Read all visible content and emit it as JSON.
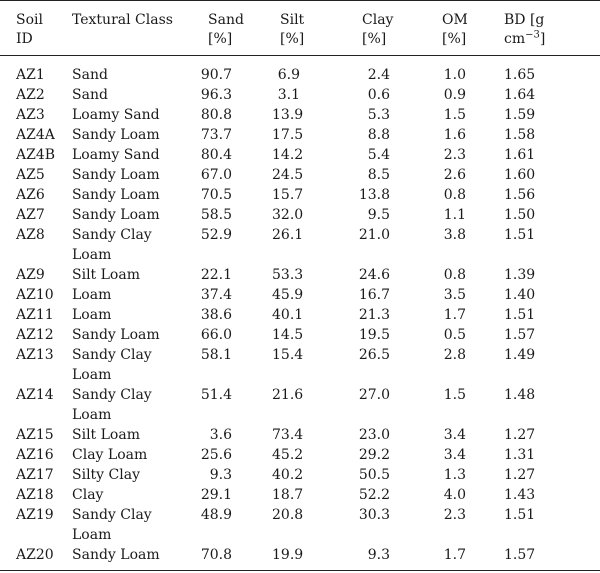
{
  "headers": {
    "soil_id_1": "Soil",
    "soil_id_2": "ID",
    "textural_class": "Textural Class",
    "sand_1": "Sand",
    "sand_2": "[%]",
    "silt_1": "Silt",
    "silt_2": "[%]",
    "clay_1": "Clay",
    "clay_2": "[%]",
    "om_1": "OM",
    "om_2": "[%]",
    "bd_1": "BD [g",
    "bd_2": "cm",
    "bd_sup": "−3",
    "bd_3": "]"
  },
  "rows": [
    {
      "id": "AZ1",
      "cls": "Sand",
      "cls2": "",
      "sand": "90.7",
      "silt": "6.9",
      "clay": "2.4",
      "om": "1.0",
      "bd": "1.65"
    },
    {
      "id": "AZ2",
      "cls": "Sand",
      "cls2": "",
      "sand": "96.3",
      "silt": "3.1",
      "clay": "0.6",
      "om": "0.9",
      "bd": "1.64"
    },
    {
      "id": "AZ3",
      "cls": "Loamy Sand",
      "cls2": "",
      "sand": "80.8",
      "silt": "13.9",
      "clay": "5.3",
      "om": "1.5",
      "bd": "1.59"
    },
    {
      "id": "AZ4A",
      "cls": "Sandy Loam",
      "cls2": "",
      "sand": "73.7",
      "silt": "17.5",
      "clay": "8.8",
      "om": "1.6",
      "bd": "1.58"
    },
    {
      "id": "AZ4B",
      "cls": "Loamy Sand",
      "cls2": "",
      "sand": "80.4",
      "silt": "14.2",
      "clay": "5.4",
      "om": "2.3",
      "bd": "1.61"
    },
    {
      "id": "AZ5",
      "cls": "Sandy Loam",
      "cls2": "",
      "sand": "67.0",
      "silt": "24.5",
      "clay": "8.5",
      "om": "2.6",
      "bd": "1.60"
    },
    {
      "id": "AZ6",
      "cls": "Sandy Loam",
      "cls2": "",
      "sand": "70.5",
      "silt": "15.7",
      "clay": "13.8",
      "om": "0.8",
      "bd": "1.56"
    },
    {
      "id": "AZ7",
      "cls": "Sandy Loam",
      "cls2": "",
      "sand": "58.5",
      "silt": "32.0",
      "clay": "9.5",
      "om": "1.1",
      "bd": "1.50"
    },
    {
      "id": "AZ8",
      "cls": "Sandy Clay",
      "cls2": "Loam",
      "sand": "52.9",
      "silt": "26.1",
      "clay": "21.0",
      "om": "3.8",
      "bd": "1.51"
    },
    {
      "id": "AZ9",
      "cls": "Silt Loam",
      "cls2": "",
      "sand": "22.1",
      "silt": "53.3",
      "clay": "24.6",
      "om": "0.8",
      "bd": "1.39"
    },
    {
      "id": "AZ10",
      "cls": "Loam",
      "cls2": "",
      "sand": "37.4",
      "silt": "45.9",
      "clay": "16.7",
      "om": "3.5",
      "bd": "1.40"
    },
    {
      "id": "AZ11",
      "cls": "Loam",
      "cls2": "",
      "sand": "38.6",
      "silt": "40.1",
      "clay": "21.3",
      "om": "1.7",
      "bd": "1.51"
    },
    {
      "id": "AZ12",
      "cls": "Sandy Loam",
      "cls2": "",
      "sand": "66.0",
      "silt": "14.5",
      "clay": "19.5",
      "om": "0.5",
      "bd": "1.57"
    },
    {
      "id": "AZ13",
      "cls": "Sandy Clay",
      "cls2": "Loam",
      "sand": "58.1",
      "silt": "15.4",
      "clay": "26.5",
      "om": "2.8",
      "bd": "1.49"
    },
    {
      "id": "AZ14",
      "cls": "Sandy Clay",
      "cls2": "Loam",
      "sand": "51.4",
      "silt": "21.6",
      "clay": "27.0",
      "om": "1.5",
      "bd": "1.48"
    },
    {
      "id": "AZ15",
      "cls": "Silt Loam",
      "cls2": "",
      "sand": "3.6",
      "silt": "73.4",
      "clay": "23.0",
      "om": "3.4",
      "bd": "1.27"
    },
    {
      "id": "AZ16",
      "cls": "Clay Loam",
      "cls2": "",
      "sand": "25.6",
      "silt": "45.2",
      "clay": "29.2",
      "om": "3.4",
      "bd": "1.31"
    },
    {
      "id": "AZ17",
      "cls": "Silty Clay",
      "cls2": "",
      "sand": "9.3",
      "silt": "40.2",
      "clay": "50.5",
      "om": "1.3",
      "bd": "1.27"
    },
    {
      "id": "AZ18",
      "cls": "Clay",
      "cls2": "",
      "sand": "29.1",
      "silt": "18.7",
      "clay": "52.2",
      "om": "4.0",
      "bd": "1.43"
    },
    {
      "id": "AZ19",
      "cls": "Sandy Clay",
      "cls2": "Loam",
      "sand": "48.9",
      "silt": "20.8",
      "clay": "30.3",
      "om": "2.3",
      "bd": "1.51"
    },
    {
      "id": "AZ20",
      "cls": "Sandy Loam",
      "cls2": "",
      "sand": "70.8",
      "silt": "19.9",
      "clay": "9.3",
      "om": "1.7",
      "bd": "1.57"
    }
  ]
}
